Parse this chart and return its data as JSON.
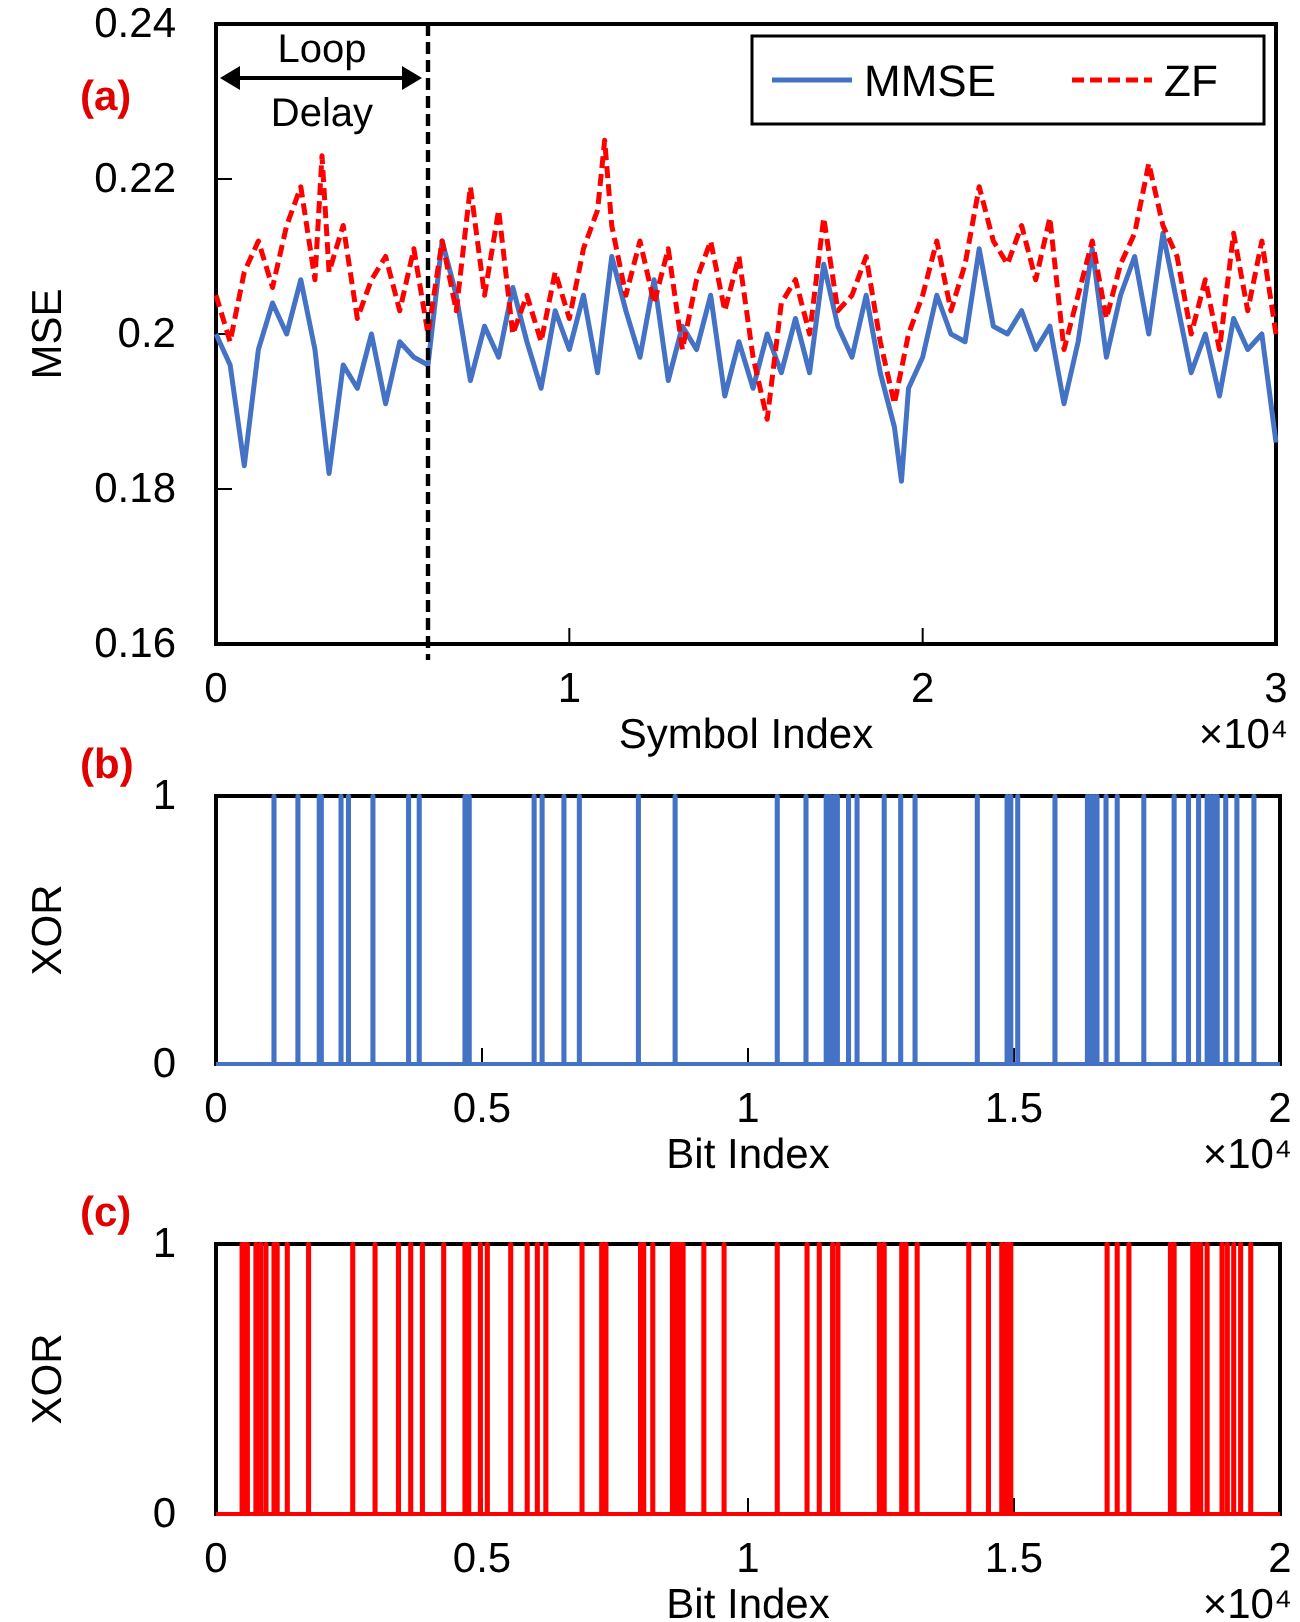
{
  "chart_data": [
    {
      "type": "line",
      "title": "(a)",
      "xlabel": "Symbol Index",
      "ylabel": "MSE",
      "xlim": [
        0,
        3
      ],
      "xticks": [
        0,
        1,
        2,
        3
      ],
      "ylim": [
        0.16,
        0.24
      ],
      "yticks": [
        0.16,
        0.18,
        0.2,
        0.22,
        0.24
      ],
      "grid": false,
      "legend": "top right",
      "ref_lines": [
        {
          "axis": "x",
          "value": 0.6,
          "line_style": "dashed",
          "color": "#000000"
        }
      ],
      "annotations": [
        "×10⁴",
        "Loop Delay"
      ],
      "series": [
        {
          "name": "MMSE",
          "color": "#4472c4",
          "line_style": "solid",
          "x": [
            0,
            0.04,
            0.08,
            0.12,
            0.16,
            0.2,
            0.24,
            0.28,
            0.32,
            0.36,
            0.4,
            0.44,
            0.48,
            0.52,
            0.56,
            0.6,
            0.64,
            0.68,
            0.72,
            0.76,
            0.8,
            0.84,
            0.88,
            0.92,
            0.96,
            1,
            1.04,
            1.08,
            1.12,
            1.16,
            1.2,
            1.24,
            1.28,
            1.32,
            1.36,
            1.4,
            1.44,
            1.48,
            1.52,
            1.56,
            1.6,
            1.64,
            1.68,
            1.72,
            1.76,
            1.8,
            1.84,
            1.88,
            1.92,
            1.94,
            1.96,
            2,
            2.04,
            2.08,
            2.12,
            2.16,
            2.2,
            2.24,
            2.28,
            2.32,
            2.36,
            2.4,
            2.44,
            2.48,
            2.52,
            2.56,
            2.6,
            2.64,
            2.68,
            2.72,
            2.76,
            2.8,
            2.84,
            2.88,
            2.92,
            2.96,
            3
          ],
          "values": [
            0.2,
            0.196,
            0.183,
            0.198,
            0.204,
            0.2,
            0.207,
            0.198,
            0.182,
            0.196,
            0.193,
            0.2,
            0.191,
            0.199,
            0.197,
            0.196,
            0.212,
            0.205,
            0.194,
            0.201,
            0.197,
            0.206,
            0.199,
            0.193,
            0.203,
            0.198,
            0.205,
            0.195,
            0.21,
            0.203,
            0.197,
            0.207,
            0.194,
            0.201,
            0.198,
            0.205,
            0.192,
            0.199,
            0.193,
            0.2,
            0.195,
            0.202,
            0.195,
            0.209,
            0.201,
            0.197,
            0.205,
            0.195,
            0.188,
            0.181,
            0.193,
            0.197,
            0.205,
            0.2,
            0.199,
            0.211,
            0.201,
            0.2,
            0.203,
            0.198,
            0.201,
            0.191,
            0.199,
            0.211,
            0.197,
            0.205,
            0.21,
            0.2,
            0.213,
            0.204,
            0.195,
            0.2,
            0.192,
            0.202,
            0.198,
            0.2,
            0.186
          ]
        },
        {
          "name": "ZF",
          "color": "#ff0000",
          "line_style": "dashed",
          "x": [
            0,
            0.04,
            0.08,
            0.12,
            0.16,
            0.2,
            0.24,
            0.28,
            0.3,
            0.32,
            0.36,
            0.4,
            0.44,
            0.48,
            0.52,
            0.56,
            0.6,
            0.64,
            0.68,
            0.72,
            0.76,
            0.8,
            0.84,
            0.88,
            0.92,
            0.96,
            1,
            1.04,
            1.08,
            1.1,
            1.12,
            1.16,
            1.2,
            1.24,
            1.28,
            1.32,
            1.36,
            1.4,
            1.44,
            1.48,
            1.52,
            1.56,
            1.6,
            1.64,
            1.68,
            1.72,
            1.76,
            1.8,
            1.84,
            1.88,
            1.92,
            1.96,
            2,
            2.04,
            2.08,
            2.12,
            2.16,
            2.2,
            2.24,
            2.28,
            2.32,
            2.36,
            2.4,
            2.44,
            2.48,
            2.52,
            2.56,
            2.6,
            2.64,
            2.68,
            2.72,
            2.76,
            2.8,
            2.84,
            2.88,
            2.92,
            2.96,
            3
          ],
          "values": [
            0.205,
            0.199,
            0.208,
            0.212,
            0.206,
            0.214,
            0.219,
            0.207,
            0.223,
            0.208,
            0.214,
            0.202,
            0.207,
            0.21,
            0.203,
            0.211,
            0.2,
            0.212,
            0.203,
            0.219,
            0.205,
            0.216,
            0.2,
            0.205,
            0.199,
            0.208,
            0.202,
            0.211,
            0.216,
            0.225,
            0.214,
            0.205,
            0.212,
            0.204,
            0.211,
            0.198,
            0.207,
            0.212,
            0.203,
            0.21,
            0.197,
            0.189,
            0.204,
            0.207,
            0.2,
            0.215,
            0.203,
            0.205,
            0.21,
            0.199,
            0.191,
            0.2,
            0.205,
            0.212,
            0.203,
            0.209,
            0.219,
            0.212,
            0.209,
            0.214,
            0.207,
            0.215,
            0.198,
            0.205,
            0.212,
            0.202,
            0.209,
            0.213,
            0.222,
            0.214,
            0.21,
            0.2,
            0.207,
            0.198,
            0.213,
            0.203,
            0.212,
            0.2
          ]
        }
      ]
    },
    {
      "type": "step",
      "title": "(b)",
      "xlabel": "Bit Index",
      "ylabel": "XOR",
      "xlim": [
        0,
        2
      ],
      "xticks": [
        0,
        0.5,
        1,
        1.5,
        2
      ],
      "ylim": [
        0,
        1
      ],
      "yticks": [
        0,
        1
      ],
      "grid": false,
      "annotations": [
        "×10⁴"
      ],
      "series": [
        {
          "color": "#4472c4",
          "x": [
            0,
            0.108,
            0.11,
            0.153,
            0.155,
            0.193,
            0.195,
            0.197,
            0.199,
            0.234,
            0.236,
            0.248,
            0.25,
            0.294,
            0.296,
            0.361,
            0.363,
            0.381,
            0.383,
            0.467,
            0.469,
            0.472,
            0.474,
            0.475,
            0.477,
            0.597,
            0.599,
            0.612,
            0.614,
            0.653,
            0.655,
            0.682,
            0.684,
            0.793,
            0.795,
            0.862,
            0.864,
            1.054,
            1.056,
            1.108,
            1.11,
            1.146,
            1.148,
            1.15,
            1.152,
            1.154,
            1.156,
            1.161,
            1.163,
            1.167,
            1.169,
            1.188,
            1.19,
            1.204,
            1.206,
            1.255,
            1.257,
            1.286,
            1.288,
            1.313,
            1.315,
            1.43,
            1.432,
            1.486,
            1.488,
            1.493,
            1.495,
            1.506,
            1.508,
            1.576,
            1.578,
            1.637,
            1.639,
            1.643,
            1.645,
            1.649,
            1.651,
            1.655,
            1.657,
            1.672,
            1.674,
            1.693,
            1.695,
            1.743,
            1.745,
            1.8,
            1.802,
            1.827,
            1.829,
            1.846,
            1.848,
            1.862,
            1.864,
            1.868,
            1.87,
            1.875,
            1.877,
            1.881,
            1.883,
            1.897,
            1.899,
            1.918,
            1.92,
            1.95,
            1.952,
            2
          ],
          "values": [
            0,
            1,
            0,
            1,
            0,
            1,
            0,
            1,
            0,
            1,
            0,
            1,
            0,
            1,
            0,
            1,
            0,
            1,
            0,
            1,
            0,
            1,
            0,
            1,
            0,
            1,
            0,
            1,
            0,
            1,
            0,
            1,
            0,
            1,
            0,
            1,
            0,
            1,
            0,
            1,
            0,
            1,
            0,
            1,
            0,
            1,
            0,
            1,
            0,
            1,
            0,
            1,
            0,
            1,
            0,
            1,
            0,
            1,
            0,
            1,
            0,
            1,
            0,
            1,
            0,
            1,
            0,
            1,
            0,
            1,
            0,
            1,
            0,
            1,
            0,
            1,
            0,
            1,
            0,
            1,
            0,
            1,
            0,
            1,
            0,
            1,
            0,
            1,
            0,
            1,
            0,
            1,
            0,
            1,
            0,
            1,
            0,
            1,
            0,
            1,
            0,
            1,
            0,
            1,
            0,
            0
          ]
        }
      ]
    },
    {
      "type": "step",
      "title": "(c)",
      "xlabel": "Bit Index",
      "ylabel": "XOR",
      "xlim": [
        0,
        2
      ],
      "xticks": [
        0,
        0.5,
        1,
        1.5,
        2
      ],
      "ylim": [
        0,
        1
      ],
      "yticks": [
        0,
        1
      ],
      "grid": false,
      "annotations": [
        "×10⁴"
      ],
      "series": [
        {
          "color": "#ff0000",
          "x": [
            0,
            0.048,
            0.05,
            0.053,
            0.055,
            0.058,
            0.06,
            0.074,
            0.076,
            0.083,
            0.085,
            0.093,
            0.095,
            0.108,
            0.11,
            0.114,
            0.116,
            0.133,
            0.135,
            0.173,
            0.175,
            0.256,
            0.258,
            0.298,
            0.3,
            0.342,
            0.344,
            0.365,
            0.367,
            0.387,
            0.389,
            0.427,
            0.429,
            0.467,
            0.469,
            0.474,
            0.476,
            0.496,
            0.498,
            0.509,
            0.511,
            0.553,
            0.555,
            0.584,
            0.586,
            0.603,
            0.605,
            0.619,
            0.621,
            0.687,
            0.689,
            0.724,
            0.726,
            0.732,
            0.734,
            0.797,
            0.799,
            0.803,
            0.805,
            0.82,
            0.822,
            0.857,
            0.859,
            0.862,
            0.864,
            0.867,
            0.869,
            0.872,
            0.874,
            0.877,
            0.879,
            0.916,
            0.918,
            0.954,
            0.956,
            1.054,
            1.056,
            1.11,
            1.112,
            1.133,
            1.135,
            1.158,
            1.16,
            1.168,
            1.17,
            1.246,
            1.248,
            1.255,
            1.257,
            1.288,
            1.29,
            1.296,
            1.298,
            1.317,
            1.319,
            1.414,
            1.416,
            1.451,
            1.453,
            1.476,
            1.478,
            1.484,
            1.486,
            1.489,
            1.491,
            1.493,
            1.495,
            1.674,
            1.676,
            1.693,
            1.695,
            1.715,
            1.717,
            1.793,
            1.795,
            1.8,
            1.802,
            1.835,
            1.837,
            1.842,
            1.844,
            1.85,
            1.852,
            1.862,
            1.864,
            1.89,
            1.892,
            1.9,
            1.902,
            1.912,
            1.914,
            1.925,
            1.927,
            1.944,
            1.946,
            2
          ],
          "values": [
            0,
            1,
            0,
            1,
            0,
            1,
            0,
            1,
            0,
            1,
            0,
            1,
            0,
            1,
            0,
            1,
            0,
            1,
            0,
            1,
            0,
            1,
            0,
            1,
            0,
            1,
            0,
            1,
            0,
            1,
            0,
            1,
            0,
            1,
            0,
            1,
            0,
            1,
            0,
            1,
            0,
            1,
            0,
            1,
            0,
            1,
            0,
            1,
            0,
            1,
            0,
            1,
            0,
            1,
            0,
            1,
            0,
            1,
            0,
            1,
            0,
            1,
            0,
            1,
            0,
            1,
            0,
            1,
            0,
            1,
            0,
            1,
            0,
            1,
            0,
            1,
            0,
            1,
            0,
            1,
            0,
            1,
            0,
            1,
            0,
            1,
            0,
            1,
            0,
            1,
            0,
            1,
            0,
            1,
            0,
            1,
            0,
            1,
            0,
            1,
            0,
            1,
            0,
            1,
            0,
            1,
            0,
            1,
            0,
            1,
            0,
            1,
            0,
            1,
            0,
            1,
            0,
            1,
            0,
            1,
            0,
            1,
            0,
            1,
            0,
            1,
            0,
            1,
            0,
            1,
            0,
            1,
            0,
            1,
            0,
            0
          ]
        }
      ]
    }
  ]
}
